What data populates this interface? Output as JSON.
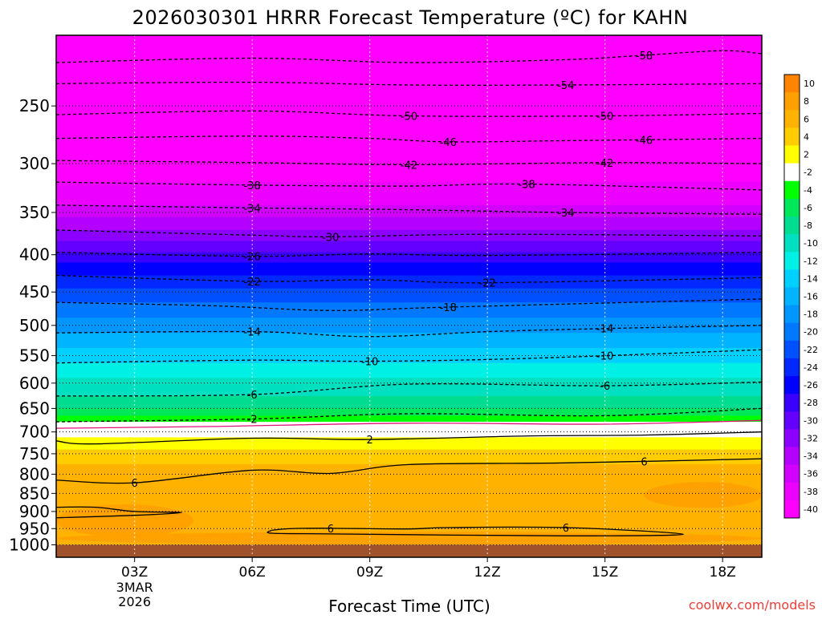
{
  "chart_data": {
    "type": "heatmap",
    "title": "2026030301 HRRR Forecast Temperature (ºC) for KAHN",
    "xlabel": "Forecast Time (UTC)",
    "ylabel": "",
    "credit": "coolwx.com/models",
    "x_unit": "forecast hour from 2026-03-03 00Z",
    "xlim": [
      1,
      19
    ],
    "x_ticks": [
      {
        "value": 3,
        "label": "03Z",
        "sublabels": [
          "3MAR",
          "2026"
        ]
      },
      {
        "value": 6,
        "label": "06Z"
      },
      {
        "value": 9,
        "label": "09Z"
      },
      {
        "value": 12,
        "label": "12Z"
      },
      {
        "value": 15,
        "label": "15Z"
      },
      {
        "value": 18,
        "label": "18Z"
      }
    ],
    "y_scale": "log-pressure",
    "ylim": [
      1040,
      200
    ],
    "y_ticks": [
      250,
      300,
      350,
      400,
      450,
      500,
      550,
      600,
      650,
      700,
      750,
      800,
      850,
      900,
      950,
      1000
    ],
    "surface_pressure": 1000,
    "vertical_gridlines": "dotted at each 3-hour tick",
    "horizontal_gridlines": "dotted at each 50 hPa",
    "colorbar": {
      "position": "right",
      "levels": [
        10,
        8,
        6,
        4,
        2,
        -2,
        -4,
        -6,
        -8,
        -10,
        -12,
        -14,
        -16,
        -18,
        -20,
        -22,
        -24,
        -26,
        -28,
        -30,
        -32,
        -34,
        -36,
        -38,
        -40
      ],
      "colors": [
        "#ff8400",
        "#ff9f00",
        "#ffb300",
        "#ffcd00",
        "#ffff00",
        "#ffffff",
        "#00ff00",
        "#00e85a",
        "#00dc90",
        "#00e0c0",
        "#00f0e6",
        "#00d0ff",
        "#00b4ff",
        "#0096ff",
        "#0078ff",
        "#0050ff",
        "#0028ff",
        "#0000ff",
        "#3a00ff",
        "#6400ff",
        "#8c00ff",
        "#b400ff",
        "#d200ff",
        "#ec00ff",
        "#ff00ff"
      ]
    },
    "contour_interval_c": 4,
    "contours": [
      {
        "value": -58,
        "label": "-58",
        "style": "dashed",
        "points": [
          [
            1,
            218
          ],
          [
            6,
            215
          ],
          [
            10,
            218
          ],
          [
            14,
            216
          ],
          [
            16,
            213
          ],
          [
            18,
            210
          ],
          [
            19,
            212
          ]
        ],
        "label_at": [
          16
        ]
      },
      {
        "value": -54,
        "label": "-54",
        "style": "dashed",
        "points": [
          [
            1,
            233
          ],
          [
            6,
            232
          ],
          [
            10,
            234
          ],
          [
            14,
            234
          ],
          [
            19,
            233
          ]
        ],
        "label_at": [
          14
        ]
      },
      {
        "value": -50,
        "label": "-50",
        "style": "dashed",
        "points": [
          [
            1,
            257
          ],
          [
            6,
            254
          ],
          [
            10,
            258
          ],
          [
            15,
            258
          ],
          [
            19,
            256
          ]
        ],
        "label_at": [
          10,
          15
        ]
      },
      {
        "value": -46,
        "label": "-46",
        "style": "dashed",
        "points": [
          [
            1,
            277
          ],
          [
            6,
            275
          ],
          [
            9,
            277
          ],
          [
            11,
            280
          ],
          [
            14,
            279
          ],
          [
            19,
            277
          ]
        ],
        "label_at": [
          11,
          16
        ]
      },
      {
        "value": -42,
        "label": "-42",
        "style": "dashed",
        "points": [
          [
            1,
            297
          ],
          [
            6,
            299
          ],
          [
            10,
            301
          ],
          [
            15,
            299
          ],
          [
            19,
            300
          ]
        ],
        "label_at": [
          10,
          15
        ]
      },
      {
        "value": -38,
        "label": "-38",
        "style": "dashed",
        "points": [
          [
            1,
            318
          ],
          [
            6,
            321
          ],
          [
            10,
            322
          ],
          [
            13,
            320
          ],
          [
            19,
            326
          ]
        ],
        "label_at": [
          6,
          13
        ]
      },
      {
        "value": -34,
        "label": "-34",
        "style": "dashed",
        "points": [
          [
            1,
            342
          ],
          [
            6,
            345
          ],
          [
            10,
            347
          ],
          [
            14,
            350
          ],
          [
            19,
            352
          ]
        ],
        "label_at": [
          6,
          14
        ]
      },
      {
        "value": -30,
        "label": "-30",
        "style": "dashed",
        "points": [
          [
            1,
            370
          ],
          [
            6,
            376
          ],
          [
            8,
            378
          ],
          [
            12,
            375
          ],
          [
            19,
            377
          ]
        ],
        "label_at": [
          8
        ]
      },
      {
        "value": -26,
        "label": "-26",
        "style": "dashed",
        "points": [
          [
            1,
            397
          ],
          [
            6,
            402
          ],
          [
            9,
            399
          ],
          [
            12,
            401
          ],
          [
            19,
            397
          ]
        ],
        "label_at": [
          6
        ]
      },
      {
        "value": -22,
        "label": "-22",
        "style": "dashed",
        "points": [
          [
            1,
            427
          ],
          [
            6,
            435
          ],
          [
            9,
            433
          ],
          [
            12,
            437
          ],
          [
            19,
            430
          ]
        ],
        "label_at": [
          6,
          12
        ]
      },
      {
        "value": -18,
        "label": "-18",
        "style": "dashed",
        "points": [
          [
            1,
            465
          ],
          [
            5,
            470
          ],
          [
            8,
            477
          ],
          [
            11,
            472
          ],
          [
            19,
            460
          ]
        ],
        "label_at": [
          11
        ]
      },
      {
        "value": -14,
        "label": "-14",
        "style": "dashed",
        "points": [
          [
            1,
            512
          ],
          [
            6,
            510
          ],
          [
            9,
            518
          ],
          [
            12,
            510
          ],
          [
            15,
            505
          ],
          [
            19,
            500
          ]
        ],
        "label_at": [
          6,
          15
        ]
      },
      {
        "value": -10,
        "label": "-10",
        "style": "dashed",
        "points": [
          [
            1,
            563
          ],
          [
            6,
            558
          ],
          [
            9,
            560
          ],
          [
            13,
            555
          ],
          [
            19,
            540
          ]
        ],
        "label_at": [
          9,
          15
        ]
      },
      {
        "value": -6,
        "label": "-6",
        "style": "dashed",
        "points": [
          [
            1,
            625
          ],
          [
            6,
            622
          ],
          [
            10,
            602
          ],
          [
            15,
            605
          ],
          [
            19,
            598
          ]
        ],
        "label_at": [
          6,
          15
        ]
      },
      {
        "value": -2,
        "label": "-2",
        "style": "dashed",
        "points": [
          [
            1,
            678
          ],
          [
            6,
            672
          ],
          [
            10,
            661
          ],
          [
            15,
            665
          ],
          [
            19,
            650
          ]
        ],
        "label_at": [
          6
        ]
      },
      {
        "value": 0,
        "label": "",
        "style": "solid-magenta",
        "points": [
          [
            1,
            692
          ],
          [
            5,
            688
          ],
          [
            10,
            681
          ],
          [
            15,
            683
          ],
          [
            19,
            675
          ]
        ],
        "label_at": []
      },
      {
        "value": 2,
        "label": "2",
        "style": "solid",
        "points": [
          [
            1,
            720
          ],
          [
            2,
            727
          ],
          [
            6,
            714
          ],
          [
            9,
            717
          ],
          [
            13,
            709
          ],
          [
            16,
            707
          ],
          [
            19,
            700
          ]
        ],
        "label_at": [
          9
        ]
      },
      {
        "value": 6,
        "label": "6",
        "style": "solid",
        "points": [
          [
            1,
            815
          ],
          [
            3,
            822
          ],
          [
            6,
            790
          ],
          [
            8,
            798
          ],
          [
            10,
            776
          ],
          [
            14,
            772
          ],
          [
            19,
            762
          ]
        ],
        "label_at": [
          3,
          16
        ]
      },
      {
        "value": 6,
        "label": "",
        "style": "solid",
        "points": [
          [
            1,
            888
          ],
          [
            2,
            888
          ],
          [
            3,
            900
          ],
          [
            4.2,
            903
          ],
          [
            3,
            911
          ],
          [
            1,
            918
          ]
        ],
        "label_at": []
      },
      {
        "value": 6,
        "label": "6",
        "style": "solid",
        "points": [
          [
            6.5,
            955
          ],
          [
            7,
            950
          ],
          [
            8,
            949
          ],
          [
            10,
            951
          ],
          [
            11,
            947
          ],
          [
            14,
            947
          ],
          [
            17,
            967
          ],
          [
            14,
            972
          ],
          [
            8,
            966
          ],
          [
            6.5,
            964
          ],
          [
            6.5,
            955
          ]
        ],
        "label_at": [
          8,
          14
        ]
      }
    ],
    "fill_bands_pressure": [
      {
        "color": "#ff00ff",
        "top": 200,
        "bottom": 318
      },
      {
        "color": "#ec00ff",
        "top": 318,
        "bottom": 342
      },
      {
        "color": "#d200ff",
        "top": 342,
        "bottom": 355
      },
      {
        "color": "#b400ff",
        "top": 355,
        "bottom": 370
      },
      {
        "color": "#8c00ff",
        "top": 370,
        "bottom": 383
      },
      {
        "color": "#6400ff",
        "top": 383,
        "bottom": 397
      },
      {
        "color": "#3a00ff",
        "top": 397,
        "bottom": 410
      },
      {
        "color": "#0000ff",
        "top": 410,
        "bottom": 427
      },
      {
        "color": "#0028ff",
        "top": 427,
        "bottom": 445
      },
      {
        "color": "#0050ff",
        "top": 445,
        "bottom": 465
      },
      {
        "color": "#0078ff",
        "top": 465,
        "bottom": 488
      },
      {
        "color": "#0096ff",
        "top": 488,
        "bottom": 512
      },
      {
        "color": "#00b4ff",
        "top": 512,
        "bottom": 537
      },
      {
        "color": "#00d0ff",
        "top": 537,
        "bottom": 563
      },
      {
        "color": "#00f0e6",
        "top": 563,
        "bottom": 590
      },
      {
        "color": "#00e0c0",
        "top": 590,
        "bottom": 625
      },
      {
        "color": "#00dc90",
        "top": 625,
        "bottom": 650
      },
      {
        "color": "#00e85a",
        "top": 650,
        "bottom": 665
      },
      {
        "color": "#00ff00",
        "top": 665,
        "bottom": 678
      },
      {
        "color": "#ffffff",
        "top": 678,
        "bottom": 712
      },
      {
        "color": "#ffff00",
        "top": 712,
        "bottom": 740
      },
      {
        "color": "#ffcd00",
        "top": 740,
        "bottom": 775
      },
      {
        "color": "#ffb300",
        "top": 775,
        "bottom": 1040
      }
    ],
    "surface_fill_color": "#a0522d",
    "warm_pockets": [
      {
        "color": "#ff9f00",
        "x": [
          1,
          4.5
        ],
        "p": [
          880,
          975
        ]
      },
      {
        "color": "#ff9f00",
        "x": [
          16,
          19
        ],
        "p": [
          820,
          890
        ]
      },
      {
        "color": "#ff9f00",
        "x": [
          1,
          19
        ],
        "p": [
          960,
          1000
        ]
      }
    ]
  }
}
